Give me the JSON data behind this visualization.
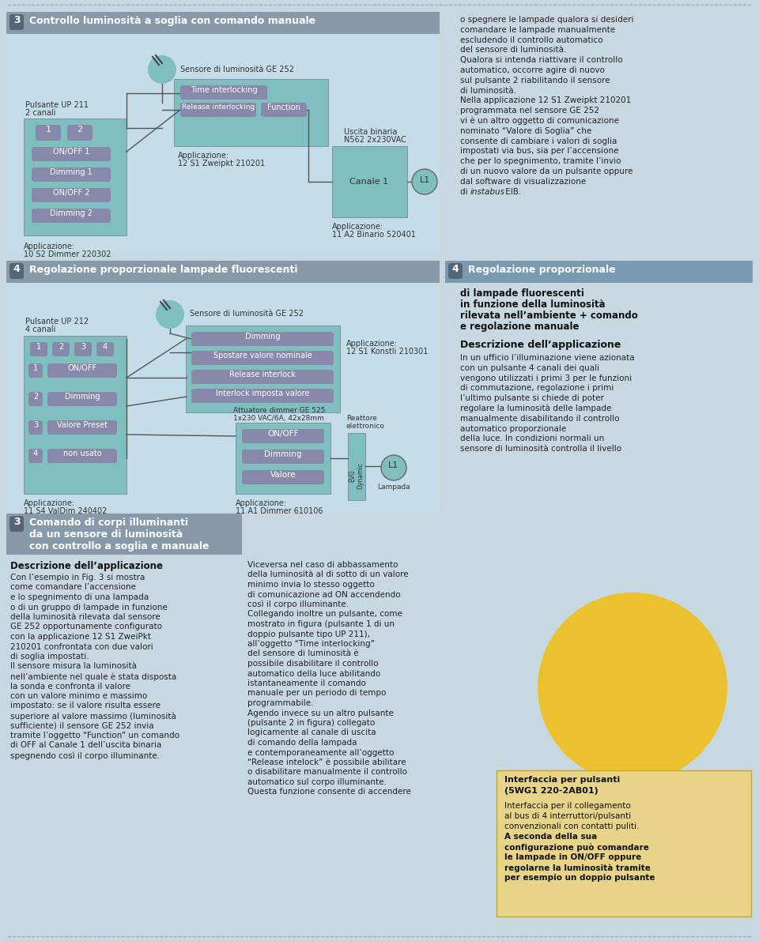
{
  "bg_color": "#d8e4ec",
  "white": "#ffffff",
  "light_blue_box": "#c5dde8",
  "teal_box": "#7fbfbf",
  "teal_dark": "#5a9fa0",
  "purple_btn": "#8888aa",
  "section_header_bg": "#8899aa",
  "header_text": "#ffffff",
  "section4_header_bg": "#7a9ab0",
  "text_color": "#222222",
  "bold_color": "#111111",
  "yellow_circle": "#f0c020",
  "title3_text": "Controllo luminosità a soglia con comando manuale",
  "title4_text": "Regolazione proporzionale lampade fluorescenti",
  "title4r_text": "Regolazione proporzionale",
  "right_title4_lines": [
    "di lampade fluorescenti",
    "in funzione della luminosità",
    "rilevata nell’ambiente + comando",
    "e regolazione manuale"
  ],
  "right_p1": [
    "o spegnere le lampade qualora si desideri",
    "comandare le lampade manualmente",
    "escludendo il controllo automatico",
    "del sensore di luminosità.",
    "Qualora si intenda riattivare il controllo",
    "automatico, occorre agire di nuovo",
    "sul pulsante 2 riabilitando il sensore",
    "di luminosità.",
    "Nella applicazione 12 S1 Zweipkt 210201",
    "programmata nel sensore GE 252",
    "vi è un altro oggetto di comunicazione",
    "nominato “Valore di Soglia” che",
    "consente di cambiare i valori di soglia",
    "impostati via bus, sia per l’accensione",
    "che per lo spegnimento, tramite l’invio",
    "di un nuovo valore da un pulsante oppure",
    "dal software di visualizzazione",
    "di instabus EIB."
  ],
  "right_title4_desc": "Descrizione dell’applicazione",
  "right_p2": [
    "In un ufficio l’illuminazione viene azionata",
    "con un pulsante 4 canali dei quali",
    "vengono utilizzati i primi 3 per le funzioni",
    "di commutazione, regolazione i primi",
    "l’ultimo pulsante si chiede di poter",
    "regolare la luminosità delle lampade",
    "manualmente disabilitando il controllo",
    "automatico proporzionale",
    "della luce. In condizioni normali un",
    "sensore di luminosità controlla il livello"
  ],
  "title3b_text": "Comando di corpi illuminanti",
  "title3b_line2": "da un sensore di luminosità",
  "title3b_line3": "con controllo a soglia e manuale",
  "desc3b_title": "Descrizione dell’applicazione",
  "desc3b_p1": [
    "Con l’esempio in Fig. 3 si mostra",
    "come comandare l’accensione",
    "e lo spegnimento di una lampada",
    "o di un gruppo di lampade in funzione",
    "della luminosità rilevata dal sensore",
    "GE 252 opportunamente configurato",
    "con la applicazione 12 S1 ZweiPkt",
    "210201 confrontata con due valori",
    "di soglia impostati.",
    "Il sensore misura la luminosità",
    "nell’ambiente nel quale è stata disposta",
    "la sonda e confronta il valore",
    "con un valore minimo e massimo",
    "impostato: se il valore risulta essere",
    "superiore al valore massimo (luminosità",
    "sufficiente) il sensore GE 252 invia",
    "tramite l’oggetto “Function” un comando",
    "di OFF al Canale 1 dell’uscita binaria",
    "spegnendo così il corpo illuminante."
  ],
  "desc3b_p2": [
    "Viceversa nel caso di abbassamento",
    "della luminosità al di sotto di un valore",
    "minimo invia lo stesso oggetto",
    "di comunicazione ad ON accendendo",
    "così il corpo illuminante.",
    "Collegando inoltre un pulsante, come",
    "mostrato in figura (pulsante 1 di un",
    "doppio pulsante tipo UP 211),",
    "all’oggetto “Time interlocking”",
    "del sensore di luminosità è",
    "possibile disabilitare il controllo",
    "automatico della luce abilitando",
    "istantaneamente il comando",
    "manuale per un periodo di tempo",
    "programmabile.",
    "Agendo invece su un altro pulsante",
    "(pulsante 2 in figura) collegato",
    "logicamente al canale di uscita",
    "di comando della lampada",
    "e contemporaneamente all’oggetto",
    "“Release intelock” è possibile abilitare",
    "o disabilitare manualmente il controllo",
    "automatico sul corpo illuminante.",
    "Questa funzione consente di accendere"
  ],
  "interfaccia_title1": "Interfaccia per pulsanti",
  "interfaccia_title2": "(5WG1 220-2AB01)",
  "interfaccia_desc": [
    "Interfaccia per il collegamento",
    "al bus di 4 interruttori/pulsanti",
    "convenzionali con contatti puliti.",
    "A seconda della sua",
    "configurazione può comandare",
    "le lampade in ON/OFF oppure",
    "regolarne la luminosità tramite",
    "per esempio un doppio pulsante"
  ],
  "dotted_line_color": "#aaaaaa",
  "page_bg": "#c8d8e0"
}
